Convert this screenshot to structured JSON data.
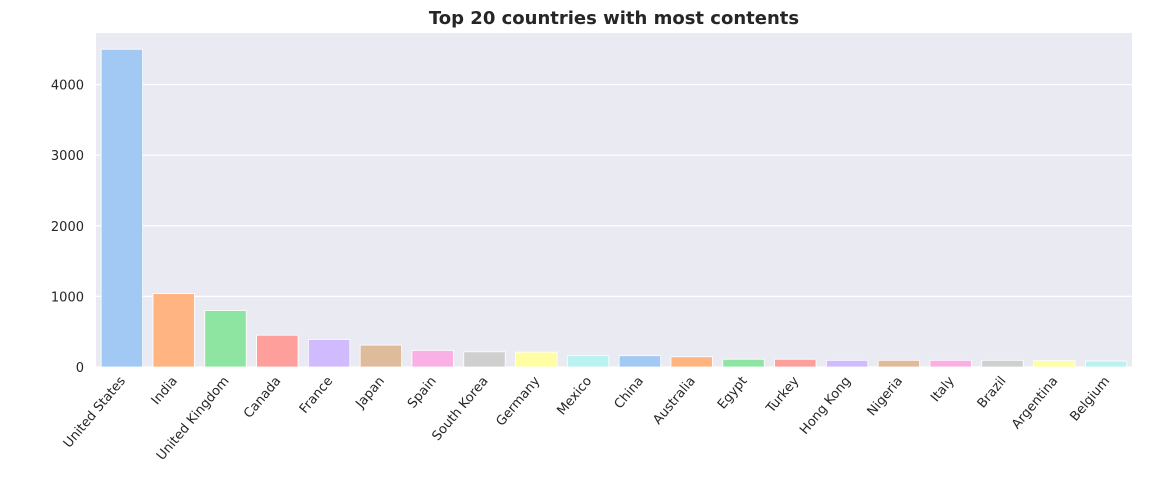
{
  "chart_data": {
    "type": "bar",
    "title": "Top 20 countries with most contents",
    "xlabel": "",
    "ylabel": "",
    "categories": [
      "United States",
      "India",
      "United Kingdom",
      "Canada",
      "France",
      "Japan",
      "Spain",
      "South Korea",
      "Germany",
      "Mexico",
      "China",
      "Australia",
      "Egypt",
      "Turkey",
      "Hong Kong",
      "Nigeria",
      "Italy",
      "Brazil",
      "Argentina",
      "Belgium"
    ],
    "values": [
      4500,
      1040,
      800,
      450,
      390,
      310,
      235,
      215,
      210,
      160,
      160,
      145,
      110,
      110,
      95,
      95,
      95,
      95,
      90,
      85
    ],
    "yticks": [
      "0",
      "1000",
      "2000",
      "3000",
      "4000"
    ],
    "ylim": [
      0,
      4730
    ],
    "grid": true,
    "colors": [
      "#a1c9f4",
      "#ffb482",
      "#8de5a1",
      "#ff9f9b",
      "#d0bbff",
      "#debb9b",
      "#fab0e4",
      "#cfcfcf",
      "#fffea3",
      "#b9f2f0"
    ]
  }
}
